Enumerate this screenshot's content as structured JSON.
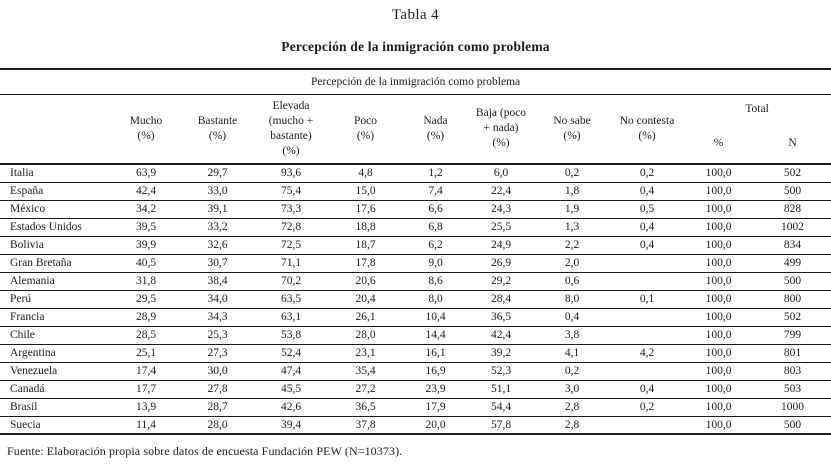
{
  "page": {
    "title": "Tabla 4",
    "subtitle": "Percepción de la inmigración como problema",
    "footer": "Fuente: Elaboración propia sobre datos de encuesta Fundación PEW (N=10373)."
  },
  "table": {
    "caption": "Percepción de la inmigración como problema",
    "columns": [
      "Mucho\n(%)",
      "Bastante\n(%)",
      "Elevada\n(mucho +\nbastante)\n(%)",
      "Poco\n(%)",
      "Nada\n(%)",
      "Baja (poco\n+ nada)\n(%)",
      "No sabe\n(%)",
      "No contesta\n(%)"
    ],
    "total_label": "Total",
    "total_sub_columns": [
      "%",
      "N"
    ],
    "rows": [
      {
        "country": "Italia",
        "values": [
          "63,9",
          "29,7",
          "93,6",
          "4,8",
          "1,2",
          "6,0",
          "0,2",
          "0,2",
          "100,0",
          "502"
        ]
      },
      {
        "country": "España",
        "values": [
          "42,4",
          "33,0",
          "75,4",
          "15,0",
          "7,4",
          "22,4",
          "1,8",
          "0,4",
          "100,0",
          "500"
        ]
      },
      {
        "country": "México",
        "values": [
          "34,2",
          "39,1",
          "73,3",
          "17,6",
          "6,6",
          "24,3",
          "1,9",
          "0,5",
          "100,0",
          "828"
        ]
      },
      {
        "country": "Estados Unidos",
        "values": [
          "39,5",
          "33,2",
          "72,8",
          "18,8",
          "6,8",
          "25,5",
          "1,3",
          "0,4",
          "100,0",
          "1002"
        ]
      },
      {
        "country": "Bolivia",
        "values": [
          "39,9",
          "32,6",
          "72,5",
          "18,7",
          "6,2",
          "24,9",
          "2,2",
          "0,4",
          "100,0",
          "834"
        ]
      },
      {
        "country": "Gran Bretaña",
        "values": [
          "40,5",
          "30,7",
          "71,1",
          "17,8",
          "9,0",
          "26,9",
          "2,0",
          "",
          "100,0",
          "499"
        ]
      },
      {
        "country": "Alemania",
        "values": [
          "31,8",
          "38,4",
          "70,2",
          "20,6",
          "8,6",
          "29,2",
          "0,6",
          "",
          "100,0",
          "500"
        ]
      },
      {
        "country": "Perú",
        "values": [
          "29,5",
          "34,0",
          "63,5",
          "20,4",
          "8,0",
          "28,4",
          "8,0",
          "0,1",
          "100,0",
          "800"
        ]
      },
      {
        "country": "Francia",
        "values": [
          "28,9",
          "34,3",
          "63,1",
          "26,1",
          "10,4",
          "36,5",
          "0,4",
          "",
          "100,0",
          "502"
        ]
      },
      {
        "country": "Chile",
        "values": [
          "28,5",
          "25,3",
          "53,8",
          "28,0",
          "14,4",
          "42,4",
          "3,8",
          "",
          "100,0",
          "799"
        ]
      },
      {
        "country": "Argentina",
        "values": [
          "25,1",
          "27,3",
          "52,4",
          "23,1",
          "16,1",
          "39,2",
          "4,1",
          "4,2",
          "100,0",
          "801"
        ]
      },
      {
        "country": "Venezuela",
        "values": [
          "17,4",
          "30,0",
          "47,4",
          "35,4",
          "16,9",
          "52,3",
          "0,2",
          "",
          "100,0",
          "803"
        ]
      },
      {
        "country": "Canadá",
        "values": [
          "17,7",
          "27,8",
          "45,5",
          "27,2",
          "23,9",
          "51,1",
          "3,0",
          "0,4",
          "100,0",
          "503"
        ]
      },
      {
        "country": "Brasil",
        "values": [
          "13,9",
          "28,7",
          "42,6",
          "36,5",
          "17,9",
          "54,4",
          "2,8",
          "0,2",
          "100,0",
          "1000"
        ]
      },
      {
        "country": "Suecia",
        "values": [
          "11,4",
          "28,0",
          "39,4",
          "37,8",
          "20,0",
          "57,8",
          "2,8",
          "",
          "100,0",
          "500"
        ]
      }
    ]
  }
}
